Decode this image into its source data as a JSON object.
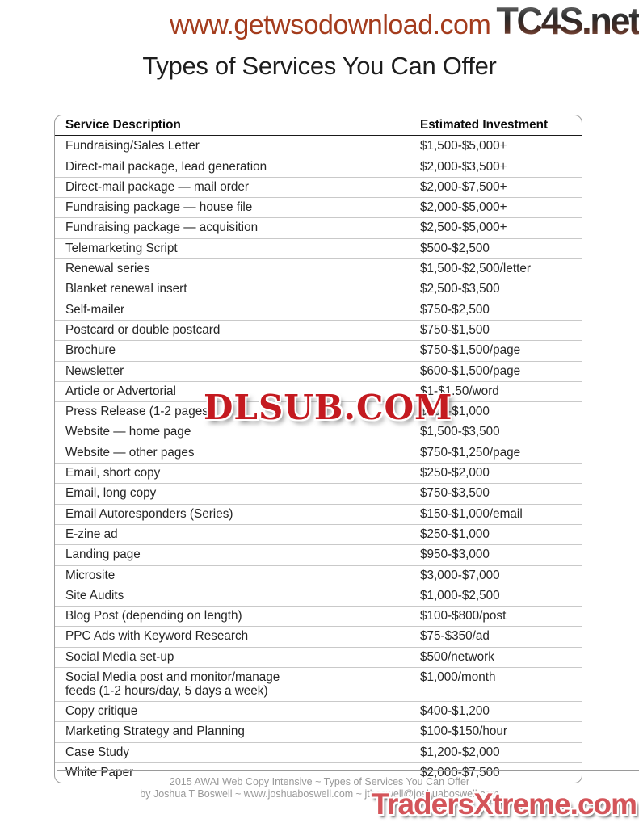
{
  "watermarks": {
    "top_url": "www.getwsodownload.com",
    "top_right": "TC4S.net",
    "center": "DLSUB.COM",
    "bottom_right": "TradersXtreme.com"
  },
  "page": {
    "title": "Types of Services You Can Offer"
  },
  "table": {
    "columns": [
      "Service Description",
      "Estimated Investment"
    ],
    "rows": [
      {
        "service": "Fundraising/Sales Letter",
        "investment": "$1,500-$5,000+"
      },
      {
        "service": "Direct-mail package, lead generation",
        "investment": "$2,000-$3,500+"
      },
      {
        "service": "Direct-mail package — mail order",
        "investment": "$2,000-$7,500+"
      },
      {
        "service": "Fundraising package — house file",
        "investment": "$2,000-$5,000+"
      },
      {
        "service": "Fundraising package — acquisition",
        "investment": "$2,500-$5,000+"
      },
      {
        "service": "Telemarketing Script",
        "investment": "$500-$2,500"
      },
      {
        "service": "Renewal series",
        "investment": "$1,500-$2,500/letter"
      },
      {
        "service": "Blanket renewal insert",
        "investment": "$2,500-$3,500"
      },
      {
        "service": "Self-mailer",
        "investment": "$750-$2,500"
      },
      {
        "service": "Postcard or double postcard",
        "investment": "$750-$1,500"
      },
      {
        "service": "Brochure",
        "investment": "$750-$1,500/page"
      },
      {
        "service": "Newsletter",
        "investment": "$600-$1,500/page"
      },
      {
        "service": "Article or Advertorial",
        "investment": "$1-$1.50/word"
      },
      {
        "service": "Press Release (1-2 pages)",
        "investment": "$500-$1,000"
      },
      {
        "service": "Website — home page",
        "investment": "$1,500-$3,500"
      },
      {
        "service": "Website — other pages",
        "investment": "$750-$1,250/page"
      },
      {
        "service": "Email, short copy",
        "investment": "$250-$2,000"
      },
      {
        "service": "Email, long copy",
        "investment": "$750-$3,500"
      },
      {
        "service": "Email Autoresponders (Series)",
        "investment": "$150-$1,000/email"
      },
      {
        "service": "E-zine ad",
        "investment": "$250-$1,000"
      },
      {
        "service": "Landing page",
        "investment": "$950-$3,000"
      },
      {
        "service": "Microsite",
        "investment": "$3,000-$7,000"
      },
      {
        "service": "Site Audits",
        "investment": "$1,000-$2,500"
      },
      {
        "service": "Blog Post (depending on length)",
        "investment": "$100-$800/post"
      },
      {
        "service": "PPC Ads with Keyword Research",
        "investment": "$75-$350/ad"
      },
      {
        "service": "Social Media set-up",
        "investment": "$500/network"
      },
      {
        "service": "Social Media post and monitor/manage\nfeeds (1-2 hours/day, 5 days a week)",
        "investment": "$1,000/month"
      },
      {
        "service": "Copy critique",
        "investment": "$400-$1,200"
      },
      {
        "service": "Marketing Strategy and Planning",
        "investment": "$100-$150/hour"
      },
      {
        "service": "Case Study",
        "investment": "$1,200-$2,000"
      },
      {
        "service": "White Paper",
        "investment": "$2,000-$7,500"
      }
    ]
  },
  "footer": {
    "line1": "2015 AWAI Web Copy Intensive ~ Types of Services You Can Offer",
    "line2": "by Joshua T Boswell ~ www.joshuaboswell.com ~ jtboswell@joshuaboswell.com"
  },
  "colors": {
    "top_url_red": "#a43c1d",
    "dlsub_red": "#c41a20",
    "tradersxtreme_red": "#d4555a",
    "table_border": "#9c9c9c",
    "row_divider": "#c9c9c9",
    "footer_gray": "#999999"
  }
}
